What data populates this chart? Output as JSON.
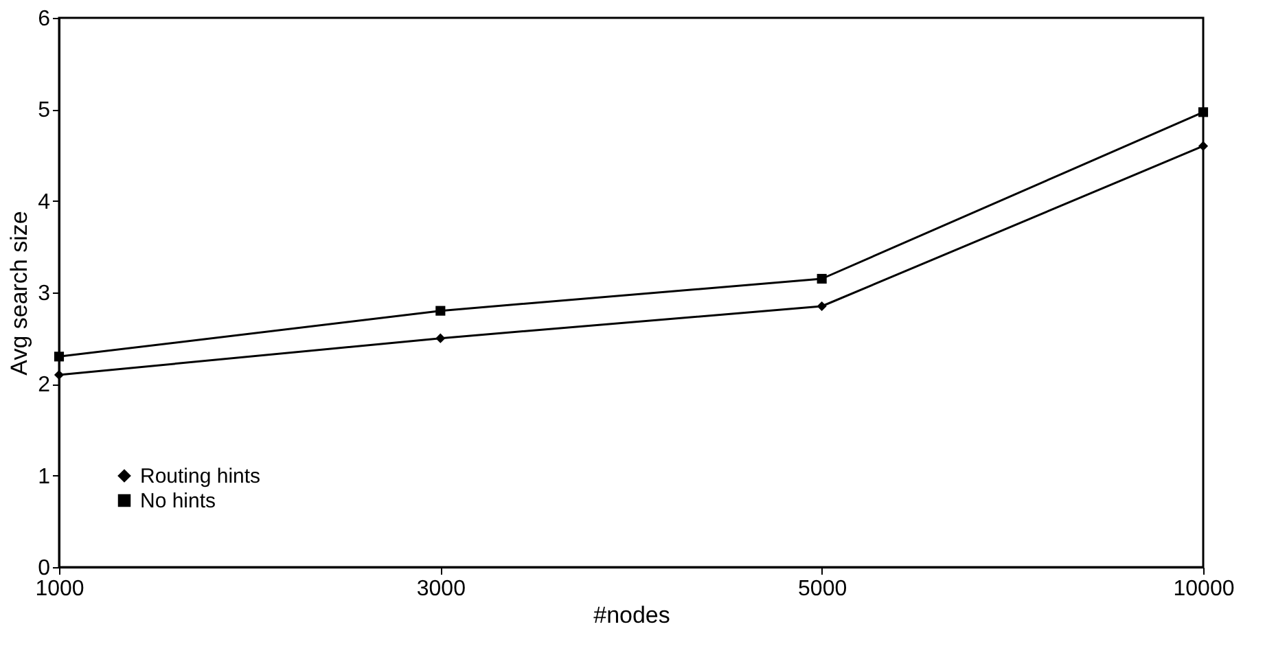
{
  "chart_data": {
    "type": "line",
    "xlabel": "#nodes",
    "ylabel": "Avg search size",
    "categories": [
      "1000",
      "3000",
      "5000",
      "10000"
    ],
    "ylim": [
      0,
      6
    ],
    "yticks": [
      0,
      1,
      2,
      3,
      4,
      5,
      6
    ],
    "grid": false,
    "legend": "bottom left",
    "line_style": "solid",
    "series": [
      {
        "name": "Routing hints",
        "color": "#000000",
        "marker": "diamond",
        "values": [
          2.1,
          2.5,
          2.85,
          4.6
        ]
      },
      {
        "name": "No hints",
        "color": "#000000",
        "marker": "square",
        "values": [
          2.3,
          2.8,
          3.15,
          4.97
        ]
      }
    ]
  }
}
